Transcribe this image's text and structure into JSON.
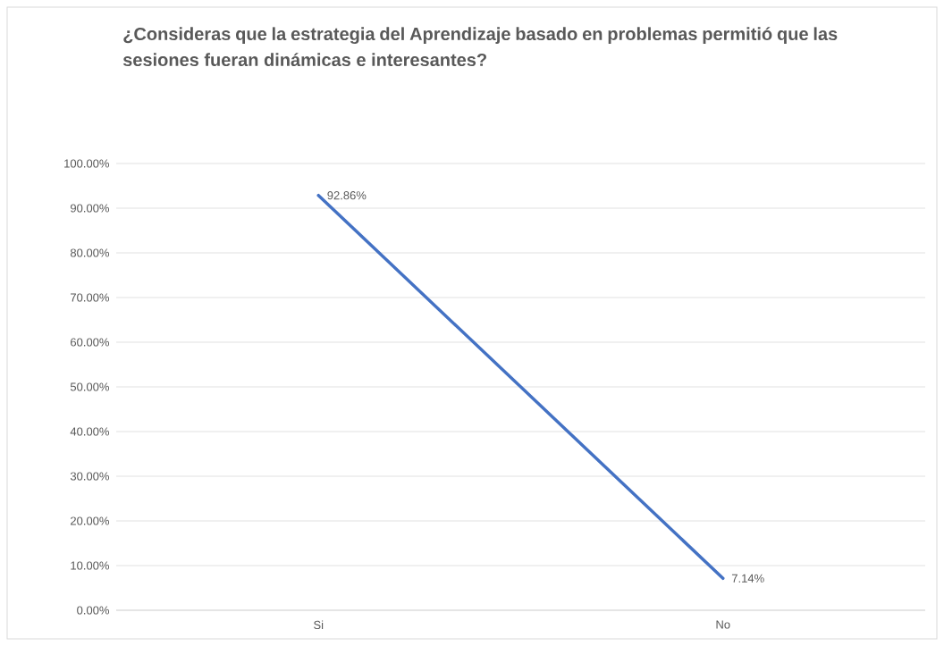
{
  "chart_data": {
    "type": "line",
    "title": "¿Consideras que la estrategia del Aprendizaje basado en problemas permitió que las sesiones fueran dinámicas e interesantes?",
    "categories": [
      "Si",
      "No"
    ],
    "series": [
      {
        "color": "#4472c4",
        "values": [
          92.86,
          7.14
        ],
        "value_labels": [
          "92.86%",
          "7.14%"
        ]
      }
    ],
    "ylim": [
      0,
      100
    ],
    "yticks": [
      {
        "value": 0,
        "label": "0.00%"
      },
      {
        "value": 10,
        "label": "10.00%"
      },
      {
        "value": 20,
        "label": "20.00%"
      },
      {
        "value": 30,
        "label": "30.00%"
      },
      {
        "value": 40,
        "label": "40.00%"
      },
      {
        "value": 50,
        "label": "50.00%"
      },
      {
        "value": 60,
        "label": "60.00%"
      },
      {
        "value": 70,
        "label": "70.00%"
      },
      {
        "value": 80,
        "label": "80.00%"
      },
      {
        "value": 90,
        "label": "90.00%"
      },
      {
        "value": 100,
        "label": "100.00%"
      }
    ],
    "grid": "y",
    "marker": "none",
    "line_style": "solid"
  }
}
